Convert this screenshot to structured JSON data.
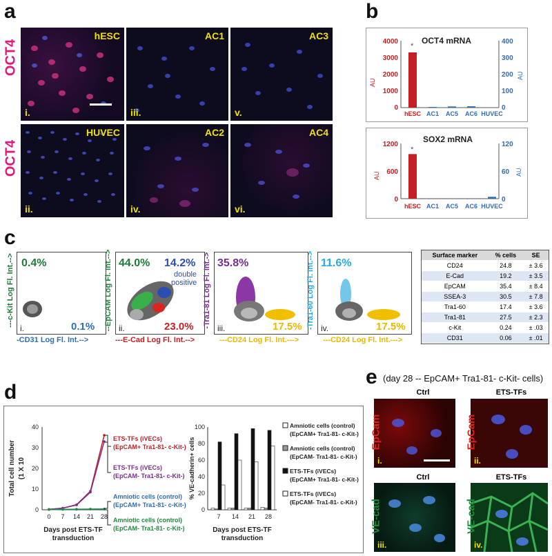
{
  "panels": {
    "a": "a",
    "b": "b",
    "c": "c",
    "d": "d",
    "e": "e"
  },
  "panel_a": {
    "row_label": "OCT4",
    "images": [
      {
        "tag": "hESC",
        "num": "i."
      },
      {
        "tag": "AC1",
        "num": "iii."
      },
      {
        "tag": "AC3",
        "num": "v."
      },
      {
        "tag": "HUVEC",
        "num": "ii."
      },
      {
        "tag": "AC2",
        "num": "iv."
      },
      {
        "tag": "AC4",
        "num": "vi."
      }
    ]
  },
  "panel_b": {
    "oct4": {
      "title": "OCT4 mRNA",
      "left_ticks": [
        "4000",
        "3000",
        "2000",
        "1000",
        "0"
      ],
      "right_ticks": [
        "400",
        "300",
        "200",
        "100",
        "0"
      ],
      "left_unit": "AU",
      "right_unit": "AU",
      "star": "*"
    },
    "sox2": {
      "title": "SOX2 mRNA",
      "left_ticks": [
        "1200",
        "600",
        "0"
      ],
      "right_ticks": [
        "120",
        "60",
        "0"
      ],
      "left_unit": "AU",
      "right_unit": "AU",
      "star": "*"
    },
    "categories": [
      "hESC",
      "AC1",
      "AC5",
      "AC6",
      "HUVEC"
    ]
  },
  "panel_c": {
    "plots": [
      {
        "num": "i.",
        "tl": "0.4%",
        "br": "0.1%",
        "ylabel": "---c-Kit Log Fl. Int.-->",
        "xlabel": "-CD31 Log Fl. Int.-->"
      },
      {
        "num": "ii.",
        "tl": "44.0%",
        "tr": "14.2%",
        "note1": "double",
        "note2": "positive",
        "br": "23.0%",
        "ylabel": "--EpCAM Log Fl. Int.-->",
        "xlabel": "---E-Cad Log Fl. Int.-->"
      },
      {
        "num": "iii.",
        "tl": "35.8%",
        "br": "17.5%",
        "ylabel": "-Tra1-81 Log Fl. Int.->",
        "xlabel": "---CD24 Log Fl. Int.--->"
      },
      {
        "num": "iv.",
        "tl": "11.6%",
        "br": "17.5%",
        "ylabel": "-Tra1-60 Log Fl. Int.-->",
        "xlabel": "---CD24 Log Fl. Int.--->"
      }
    ],
    "table": {
      "headers": [
        "Surface marker",
        "% cells",
        "SE"
      ],
      "rows": [
        [
          "CD24",
          "24.8",
          "± 3.6"
        ],
        [
          "E-Cad",
          "19.2",
          "± 3.5"
        ],
        [
          "EpCAM",
          "35.4",
          "± 8.4"
        ],
        [
          "SSEA-3",
          "30.5",
          "± 7.8"
        ],
        [
          "Tra1-60",
          "17.4",
          "± 3.6"
        ],
        [
          "Tra1-81",
          "27.5",
          "± 2.3"
        ],
        [
          "c-Kit",
          "0.24",
          "± .03"
        ],
        [
          "CD31",
          "0.06",
          "± .01"
        ]
      ]
    }
  },
  "panel_d": {
    "line": {
      "ylabel1": "Total cell number",
      "ylabel2": "(1 X 10",
      "xlabel1": "Days post ETS-TF",
      "xlabel2": "transduction",
      "yticks": [
        "40",
        "30",
        "20",
        "10",
        "0"
      ],
      "xticks": [
        "0",
        "7",
        "14",
        "21",
        "28"
      ],
      "labels": [
        {
          "l1": "ETS-TFs (iVECs)",
          "l2": "(EpCAM+ Tra1-81- c-Kit-)"
        },
        {
          "l1": "ETS-TFs (iVECs)",
          "l2": "(EpCAM- Tra1-81- c-Kit-)"
        },
        {
          "l1": "Amniotic cells  (control)",
          "l2": "(EpCAM+ Tra1-81- c-Kit-)"
        },
        {
          "l1": "Amniotic cells (control)",
          "l2": "(EpCAM- Tra1-81- c-Kit-)"
        }
      ]
    },
    "bar": {
      "ylabel": "% VE-cadherin+ cells",
      "xlabel1": "Days post ETS-TF",
      "xlabel2": "transduction",
      "yticks": [
        "100",
        "80",
        "60",
        "40",
        "20",
        "0"
      ],
      "xticks": [
        "7",
        "14",
        "21",
        "28"
      ],
      "legend": [
        {
          "l1": "Amniotic cells (control)",
          "l2": "(EpCAM+ Tra1-81- c-Kit-)"
        },
        {
          "l1": "Amniotic cells (control)",
          "l2": "(EpCAM- Tra1-81- c-Kit-)"
        },
        {
          "l1": "ETS-TFs (iVECs)",
          "l2": "(EpCAM+ Tra1-81- c-Kit-)"
        },
        {
          "l1": "ETS-TFs (iVECs)",
          "l2": "(EpCAM- Tra1-81- c-Kit-)"
        }
      ]
    }
  },
  "panel_e": {
    "title": "(day 28  -- EpCAM+ Tra1-81- c-Kit- cells)",
    "col1": "Ctrl",
    "col2": "ETS-TFs",
    "col3": "Ctrl",
    "col4": "ETS-TFs",
    "row1": "EpCam",
    "row2": "VE-cad",
    "nums": [
      "i.",
      "ii.",
      "iii.",
      "iv."
    ]
  },
  "chart_data": [
    {
      "type": "bar",
      "title": "OCT4 mRNA",
      "categories": [
        "hESC",
        "AC1",
        "AC5",
        "AC6",
        "HUVEC"
      ],
      "values": [
        3300,
        4,
        7,
        8,
        0
      ],
      "ylim": [
        0,
        4000
      ],
      "y2lim": [
        0,
        400
      ]
    },
    {
      "type": "bar",
      "title": "SOX2 mRNA",
      "categories": [
        "hESC",
        "AC1",
        "AC5",
        "AC6",
        "HUVEC"
      ],
      "values": [
        970,
        0,
        0,
        0,
        4
      ],
      "ylim": [
        0,
        1200
      ],
      "y2lim": [
        0,
        120
      ]
    },
    {
      "type": "line",
      "x": [
        0,
        7,
        14,
        21,
        28
      ],
      "ylim": [
        0,
        40
      ],
      "series": [
        {
          "name": "ETS-TFs (iVECs) (EpCAM+ Tra1-81- c-Kit-)",
          "values": [
            0.2,
            0.8,
            2.5,
            9,
            36
          ]
        },
        {
          "name": "ETS-TFs (iVECs) (EpCAM- Tra1-81- c-Kit-)",
          "values": [
            0.2,
            0.8,
            2.3,
            8.5,
            33
          ]
        },
        {
          "name": "Amniotic cells  (control) (EpCAM+ Tra1-81- c-Kit-)",
          "values": [
            0.1,
            0.2,
            0.3,
            0.3,
            0.4
          ]
        },
        {
          "name": "Amniotic cells (control) (EpCAM- Tra1-81- c-Kit-)",
          "values": [
            0.1,
            0.2,
            0.2,
            0.3,
            0.3
          ]
        }
      ]
    },
    {
      "type": "bar",
      "categories": [
        "7",
        "14",
        "21",
        "28"
      ],
      "ylim": [
        0,
        100
      ],
      "series": [
        {
          "name": "Amniotic cells (control) (EpCAM+ Tra1-81- c-Kit-)",
          "values": [
            2,
            2,
            2,
            3
          ]
        },
        {
          "name": "Amniotic cells (control) (EpCAM- Tra1-81- c-Kit-)",
          "values": [
            1,
            2,
            2,
            2
          ]
        },
        {
          "name": "ETS-TFs (iVECs) (EpCAM+ Tra1-81- c-Kit-)",
          "values": [
            82,
            92,
            98,
            96
          ]
        },
        {
          "name": "ETS-TFs (iVECs) (EpCAM- Tra1-81- c-Kit-)",
          "values": [
            30,
            60,
            58,
            77
          ]
        }
      ]
    }
  ],
  "colors": {
    "oct4_label": "#e0187f",
    "red": "#c41e22",
    "blue": "#2f6db5",
    "green": "#1e8a3c",
    "purple": "#7a2c93",
    "yellow": "#e8b800",
    "cyan": "#29a9df",
    "micro_yellow": "#f3e000"
  }
}
